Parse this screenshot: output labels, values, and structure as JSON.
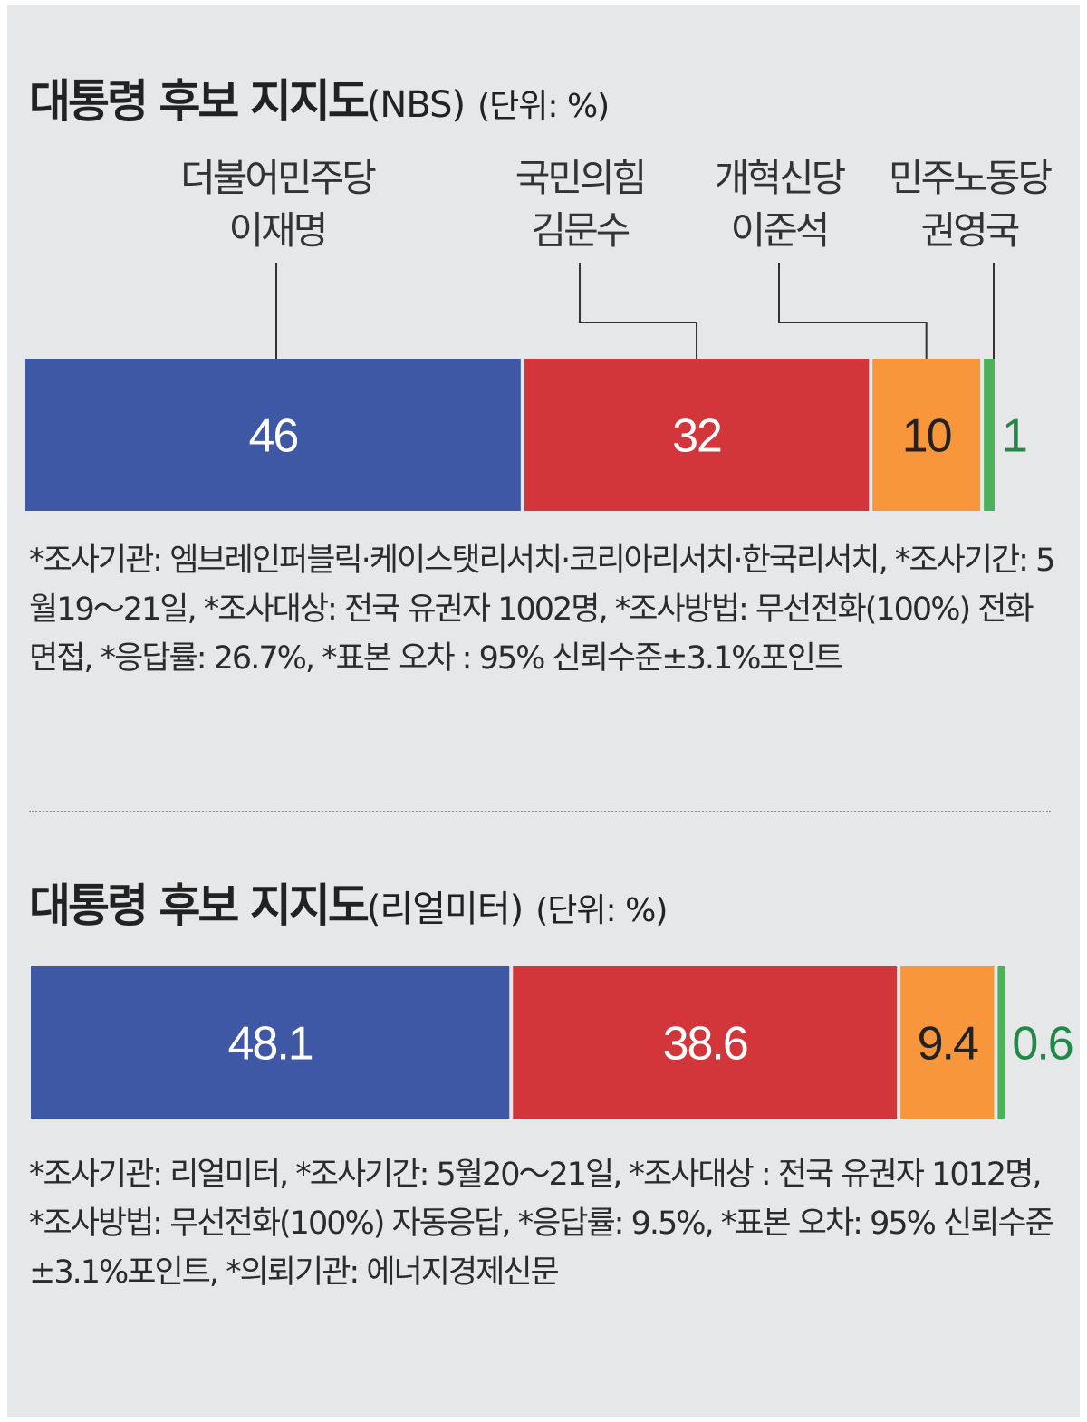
{
  "colors": {
    "blue": "#3f58a6",
    "red": "#d2363b",
    "orange": "#f7963a",
    "green": "#4cb25a",
    "green_text": "#1f8a45",
    "panel_bg": "#e6e7e9"
  },
  "chart_data": [
    {
      "type": "bar",
      "orientation": "horizontal-stacked",
      "title": "대통령 후보 지지도",
      "source": "(NBS)",
      "unit": "(단위: %)",
      "series": [
        {
          "name_line1": "더불어민주당",
          "name_line2": "이재명",
          "value": 46,
          "value_label": "46",
          "color_key": "blue"
        },
        {
          "name_line1": "국민의힘",
          "name_line2": "김문수",
          "value": 32,
          "value_label": "32",
          "color_key": "red"
        },
        {
          "name_line1": "개혁신당",
          "name_line2": "이준석",
          "value": 10,
          "value_label": "10",
          "color_key": "orange"
        },
        {
          "name_line1": "민주노동당",
          "name_line2": "권영국",
          "value": 1,
          "value_label": "1",
          "color_key": "green"
        }
      ],
      "notes": "*조사기관: 엠브레인퍼블릭·케이스탯리서치·코리아리서치·한국리서치, *조사기간: 5월19～21일, *조사대상: 전국 유권자 1002명, *조사방법: 무선전화(100%) 전화 면접, *응답률: 26.7%, *표본 오차 : 95% 신뢰수준±3.1%포인트"
    },
    {
      "type": "bar",
      "orientation": "horizontal-stacked",
      "title": "대통령 후보 지지도",
      "source": "(리얼미터)",
      "unit": "(단위: %)",
      "series": [
        {
          "value": 48.1,
          "value_label": "48.1",
          "color_key": "blue"
        },
        {
          "value": 38.6,
          "value_label": "38.6",
          "color_key": "red"
        },
        {
          "value": 9.4,
          "value_label": "9.4",
          "color_key": "orange"
        },
        {
          "value": 0.6,
          "value_label": "0.6",
          "color_key": "green"
        }
      ],
      "notes": "*조사기관: 리얼미터, *조사기간: 5월20～21일, *조사대상 : 전국 유권자 1012명, *조사방법: 무선전화(100%)   자동응답, *응답률: 9.5%, *표본 오차: 95% 신뢰수준±3.1%포인트, *의뢰기관: 에너지경제신문"
    }
  ]
}
